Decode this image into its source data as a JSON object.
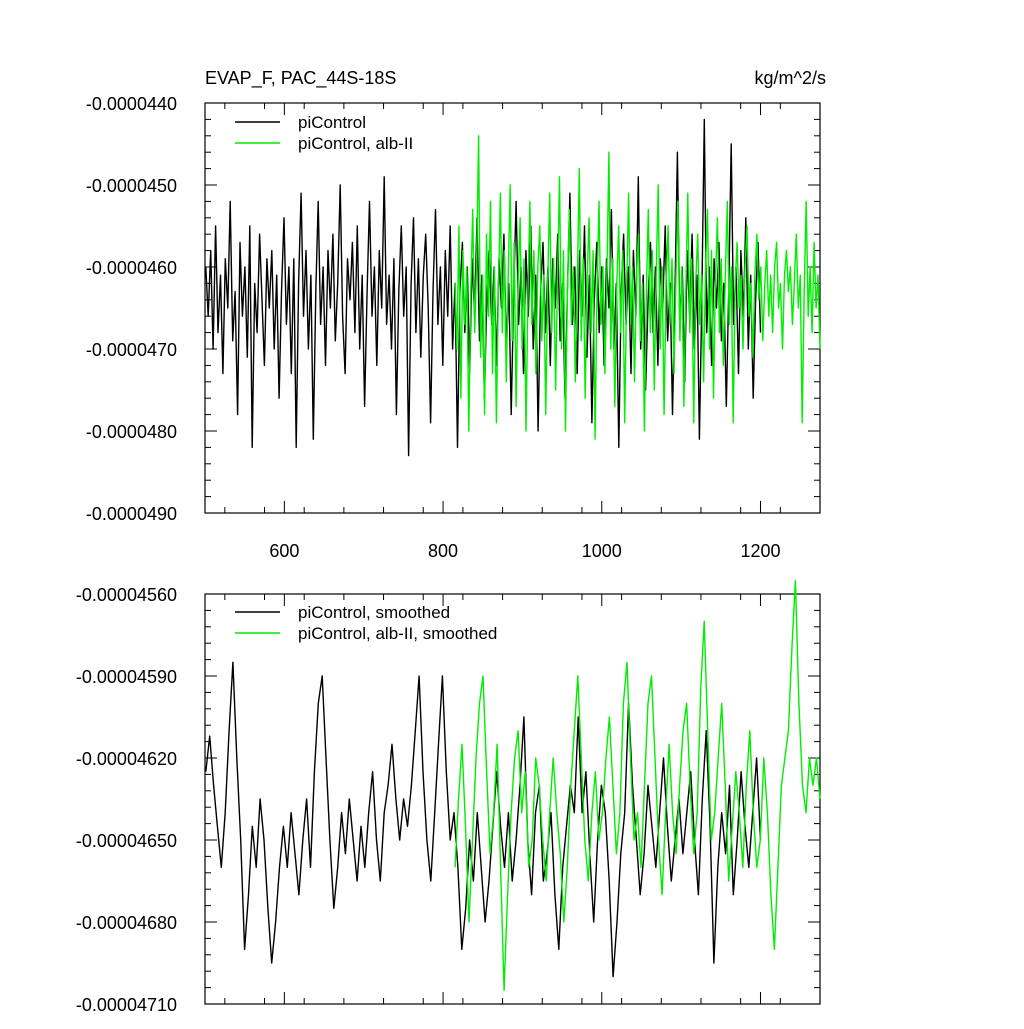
{
  "chart_data": [
    {
      "type": "line",
      "title_left": "EVAP_F, PAC_44S-18S",
      "title_right": "kg/m^2/s",
      "xlabel": "",
      "ylabel": "",
      "xlim": [
        500,
        1275
      ],
      "ylim": [
        -4.9e-05,
        -4.4e-05
      ],
      "x_ticks": [
        600,
        800,
        1000,
        1200
      ],
      "x_tick_labels": [
        "600",
        "800",
        "1000",
        "1200"
      ],
      "y_ticks": [
        -4.4e-05,
        -4.5e-05,
        -4.6e-05,
        -4.7e-05,
        -4.8e-05,
        -4.9e-05
      ],
      "y_tick_labels": [
        "-0.0000440",
        "-0.0000450",
        "-0.0000460",
        "-0.0000470",
        "-0.0000480",
        "-0.0000490"
      ],
      "legend_position": "top-left",
      "series": [
        {
          "name": "piControl",
          "color": "#000000",
          "x_start": 501,
          "x_end": 1200,
          "values": [
            -4.6e-05,
            -4.66e-05,
            -4.58e-05,
            -4.7e-05,
            -4.55e-05,
            -4.68e-05,
            -4.61e-05,
            -4.73e-05,
            -4.59e-05,
            -4.65e-05,
            -4.52e-05,
            -4.69e-05,
            -4.63e-05,
            -4.78e-05,
            -4.57e-05,
            -4.66e-05,
            -4.6e-05,
            -4.71e-05,
            -4.55e-05,
            -4.82e-05,
            -4.62e-05,
            -4.68e-05,
            -4.56e-05,
            -4.64e-05,
            -4.72e-05,
            -4.59e-05,
            -4.65e-05,
            -4.58e-05,
            -4.7e-05,
            -4.61e-05,
            -4.76e-05,
            -4.63e-05,
            -4.54e-05,
            -4.67e-05,
            -4.6e-05,
            -4.73e-05,
            -4.59e-05,
            -4.82e-05,
            -4.62e-05,
            -4.51e-05,
            -4.66e-05,
            -4.58e-05,
            -4.7e-05,
            -4.61e-05,
            -4.81e-05,
            -4.63e-05,
            -4.52e-05,
            -4.67e-05,
            -4.6e-05,
            -4.72e-05,
            -4.58e-05,
            -4.65e-05,
            -4.56e-05,
            -4.69e-05,
            -4.62e-05,
            -4.5e-05,
            -4.66e-05,
            -4.73e-05,
            -4.59e-05,
            -4.64e-05,
            -4.57e-05,
            -4.68e-05,
            -4.55e-05,
            -4.7e-05,
            -4.61e-05,
            -4.77e-05,
            -4.63e-05,
            -4.52e-05,
            -4.66e-05,
            -4.6e-05,
            -4.72e-05,
            -4.58e-05,
            -4.65e-05,
            -4.49e-05,
            -4.67e-05,
            -4.61e-05,
            -4.7e-05,
            -4.59e-05,
            -4.78e-05,
            -4.63e-05,
            -4.55e-05,
            -4.66e-05,
            -4.6e-05,
            -4.83e-05,
            -4.62e-05,
            -4.54e-05,
            -4.68e-05,
            -4.59e-05,
            -4.71e-05,
            -4.61e-05,
            -4.56e-05,
            -4.65e-05,
            -4.79e-05,
            -4.63e-05,
            -4.53e-05,
            -4.67e-05,
            -4.6e-05,
            -4.72e-05,
            -4.58e-05,
            -4.66e-05,
            -4.55e-05,
            -4.7e-05,
            -4.62e-05,
            -4.82e-05,
            -4.63e-05,
            -4.57e-05,
            -4.68e-05,
            -4.6e-05,
            -4.73e-05,
            -4.59e-05,
            -4.66e-05,
            -4.54e-05,
            -4.69e-05,
            -4.61e-05,
            -4.76e-05,
            -4.64e-05,
            -4.58e-05,
            -4.67e-05,
            -4.6e-05,
            -4.72e-05,
            -4.59e-05,
            -4.65e-05,
            -4.56e-05,
            -4.7e-05,
            -4.62e-05,
            -4.78e-05,
            -4.63e-05,
            -4.52e-05,
            -4.67e-05,
            -4.6e-05,
            -4.73e-05,
            -4.58e-05,
            -4.66e-05,
            -4.55e-05,
            -4.7e-05,
            -4.61e-05,
            -4.8e-05,
            -4.63e-05,
            -4.57e-05,
            -4.68e-05,
            -4.6e-05,
            -4.72e-05,
            -4.59e-05,
            -4.65e-05,
            -4.56e-05,
            -4.69e-05,
            -4.62e-05,
            -4.76e-05,
            -4.63e-05,
            -4.51e-05,
            -4.67e-05,
            -4.6e-05,
            -4.73e-05,
            -4.58e-05,
            -4.66e-05,
            -4.55e-05,
            -4.71e-05,
            -4.61e-05,
            -4.79e-05,
            -4.64e-05,
            -4.57e-05,
            -4.68e-05,
            -4.6e-05,
            -4.72e-05,
            -4.59e-05,
            -4.65e-05,
            -4.53e-05,
            -4.7e-05,
            -4.62e-05,
            -4.82e-05,
            -4.63e-05,
            -4.56e-05,
            -4.67e-05,
            -4.6e-05,
            -4.73e-05,
            -4.58e-05,
            -4.66e-05,
            -4.49e-05,
            -4.7e-05,
            -4.61e-05,
            -4.75e-05,
            -4.64e-05,
            -4.57e-05,
            -4.68e-05,
            -4.6e-05,
            -4.72e-05,
            -4.59e-05,
            -4.65e-05,
            -4.55e-05,
            -4.69e-05,
            -4.62e-05,
            -4.78e-05,
            -4.63e-05,
            -4.46e-05,
            -4.67e-05,
            -4.6e-05,
            -4.74e-05,
            -4.58e-05,
            -4.66e-05,
            -4.56e-05,
            -4.7e-05,
            -4.61e-05,
            -4.81e-05,
            -4.64e-05,
            -4.42e-05,
            -4.68e-05,
            -4.6e-05,
            -4.72e-05,
            -4.59e-05,
            -4.65e-05,
            -4.57e-05,
            -4.69e-05,
            -4.62e-05,
            -4.77e-05,
            -4.63e-05,
            -4.45e-05,
            -4.67e-05,
            -4.6e-05,
            -4.73e-05,
            -4.58e-05,
            -4.66e-05,
            -4.54e-05,
            -4.7e-05,
            -4.61e-05,
            -4.76e-05,
            -4.64e-05,
            -4.57e-05,
            -4.68e-05
          ]
        },
        {
          "name": "piControl, alb-II",
          "color": "#00ee00",
          "x_start": 815,
          "x_end": 1275,
          "values": [
            -4.62e-05,
            -4.7e-05,
            -4.55e-05,
            -4.76e-05,
            -4.58e-05,
            -4.67e-05,
            -4.6e-05,
            -4.8e-05,
            -4.63e-05,
            -4.53e-05,
            -4.68e-05,
            -4.59e-05,
            -4.44e-05,
            -4.71e-05,
            -4.61e-05,
            -4.78e-05,
            -4.56e-05,
            -4.66e-05,
            -4.52e-05,
            -4.73e-05,
            -4.6e-05,
            -4.79e-05,
            -4.63e-05,
            -4.51e-05,
            -4.68e-05,
            -4.58e-05,
            -4.74e-05,
            -4.61e-05,
            -4.5e-05,
            -4.69e-05,
            -4.57e-05,
            -4.77e-05,
            -4.62e-05,
            -4.54e-05,
            -4.7e-05,
            -4.59e-05,
            -4.8e-05,
            -4.63e-05,
            -4.52e-05,
            -4.67e-05,
            -4.58e-05,
            -4.73e-05,
            -4.6e-05,
            -4.55e-05,
            -4.69e-05,
            -4.61e-05,
            -4.78e-05,
            -4.62e-05,
            -4.51e-05,
            -4.68e-05,
            -4.59e-05,
            -4.75e-05,
            -4.61e-05,
            -4.49e-05,
            -4.7e-05,
            -4.58e-05,
            -4.8e-05,
            -4.63e-05,
            -4.53e-05,
            -4.67e-05,
            -4.6e-05,
            -4.74e-05,
            -4.62e-05,
            -4.48e-05,
            -4.69e-05,
            -4.59e-05,
            -4.76e-05,
            -4.61e-05,
            -4.54e-05,
            -4.68e-05,
            -4.58e-05,
            -4.81e-05,
            -4.63e-05,
            -4.52e-05,
            -4.67e-05,
            -4.6e-05,
            -4.73e-05,
            -4.61e-05,
            -4.46e-05,
            -4.7e-05,
            -4.59e-05,
            -4.77e-05,
            -4.62e-05,
            -4.55e-05,
            -4.68e-05,
            -4.58e-05,
            -4.79e-05,
            -4.63e-05,
            -4.51e-05,
            -4.67e-05,
            -4.6e-05,
            -4.74e-05,
            -4.61e-05,
            -4.56e-05,
            -4.69e-05,
            -4.62e-05,
            -4.8e-05,
            -4.63e-05,
            -4.53e-05,
            -4.68e-05,
            -4.58e-05,
            -4.75e-05,
            -4.61e-05,
            -4.5e-05,
            -4.7e-05,
            -4.6e-05,
            -4.78e-05,
            -4.62e-05,
            -4.55e-05,
            -4.67e-05,
            -4.59e-05,
            -4.73e-05,
            -4.61e-05,
            -4.52e-05,
            -4.69e-05,
            -4.6e-05,
            -4.77e-05,
            -4.63e-05,
            -4.51e-05,
            -4.68e-05,
            -4.59e-05,
            -4.79e-05,
            -4.62e-05,
            -4.56e-05,
            -4.67e-05,
            -4.61e-05,
            -4.74e-05,
            -4.6e-05,
            -4.53e-05,
            -4.7e-05,
            -4.58e-05,
            -4.76e-05,
            -4.62e-05,
            -4.54e-05,
            -4.68e-05,
            -4.59e-05,
            -4.72e-05,
            -4.61e-05,
            -4.52e-05,
            -4.67e-05,
            -4.6e-05,
            -4.79e-05,
            -4.62e-05,
            -4.57e-05,
            -4.65e-05,
            -4.61e-05,
            -4.7e-05,
            -4.6e-05,
            -4.55e-05,
            -4.66e-05,
            -4.62e-05,
            -4.71e-05,
            -4.61e-05,
            -4.56e-05,
            -4.64e-05,
            -4.6e-05,
            -4.69e-05,
            -4.62e-05,
            -4.58e-05,
            -4.66e-05,
            -4.61e-05,
            -4.68e-05,
            -4.6e-05,
            -4.57e-05,
            -4.65e-05,
            -4.62e-05,
            -4.7e-05,
            -4.61e-05,
            -4.58e-05,
            -4.63e-05,
            -4.6e-05,
            -4.67e-05,
            -4.62e-05,
            -4.56e-05,
            -4.65e-05,
            -4.61e-05,
            -4.79e-05,
            -4.63e-05,
            -4.52e-05,
            -4.66e-05,
            -4.6e-05,
            -4.68e-05,
            -4.57e-05,
            -4.65e-05,
            -4.61e-05,
            -4.7e-05
          ]
        }
      ]
    },
    {
      "type": "line",
      "xlabel": "",
      "ylabel": "",
      "xlim": [
        500,
        1275
      ],
      "ylim": [
        -4.71e-05,
        -4.56e-05
      ],
      "x_ticks": [
        600,
        800,
        1000,
        1200
      ],
      "y_ticks": [
        -4.56e-05,
        -4.59e-05,
        -4.62e-05,
        -4.65e-05,
        -4.68e-05,
        -4.71e-05
      ],
      "y_tick_labels": [
        "-0.00004560",
        "-0.00004590",
        "-0.00004620",
        "-0.00004650",
        "-0.00004680",
        "-0.00004710"
      ],
      "legend_position": "top-left",
      "series": [
        {
          "name": "piControl, smoothed",
          "color": "#000000",
          "x_start": 501,
          "x_end": 1200,
          "values": [
            -4.625e-05,
            -4.612e-05,
            -4.63e-05,
            -4.645e-05,
            -4.66e-05,
            -4.64e-05,
            -4.61e-05,
            -4.585e-05,
            -4.62e-05,
            -4.65e-05,
            -4.69e-05,
            -4.67e-05,
            -4.645e-05,
            -4.66e-05,
            -4.635e-05,
            -4.65e-05,
            -4.675e-05,
            -4.695e-05,
            -4.68e-05,
            -4.66e-05,
            -4.645e-05,
            -4.66e-05,
            -4.64e-05,
            -4.655e-05,
            -4.67e-05,
            -4.65e-05,
            -4.635e-05,
            -4.66e-05,
            -4.625e-05,
            -4.6e-05,
            -4.59e-05,
            -4.62e-05,
            -4.65e-05,
            -4.675e-05,
            -4.66e-05,
            -4.64e-05,
            -4.655e-05,
            -4.635e-05,
            -4.65e-05,
            -4.665e-05,
            -4.645e-05,
            -4.66e-05,
            -4.64e-05,
            -4.625e-05,
            -4.65e-05,
            -4.665e-05,
            -4.64e-05,
            -4.63e-05,
            -4.615e-05,
            -4.635e-05,
            -4.65e-05,
            -4.635e-05,
            -4.645e-05,
            -4.63e-05,
            -4.61e-05,
            -4.59e-05,
            -4.625e-05,
            -4.65e-05,
            -4.665e-05,
            -4.64e-05,
            -4.615e-05,
            -4.59e-05,
            -4.625e-05,
            -4.65e-05,
            -4.64e-05,
            -4.66e-05,
            -4.69e-05,
            -4.675e-05,
            -4.65e-05,
            -4.665e-05,
            -4.64e-05,
            -4.66e-05,
            -4.68e-05,
            -4.665e-05,
            -4.645e-05,
            -4.625e-05,
            -4.645e-05,
            -4.66e-05,
            -4.64e-05,
            -4.665e-05,
            -4.65e-05,
            -4.63e-05,
            -4.605e-05,
            -4.65e-05,
            -4.67e-05,
            -4.64e-05,
            -4.63e-05,
            -4.665e-05,
            -4.655e-05,
            -4.64e-05,
            -4.67e-05,
            -4.69e-05,
            -4.66e-05,
            -4.645e-05,
            -4.63e-05,
            -4.64e-05,
            -4.605e-05,
            -4.64e-05,
            -4.625e-05,
            -4.655e-05,
            -4.68e-05,
            -4.65e-05,
            -4.63e-05,
            -4.64e-05,
            -4.665e-05,
            -4.7e-05,
            -4.68e-05,
            -4.655e-05,
            -4.64e-05,
            -4.6e-05,
            -4.63e-05,
            -4.65e-05,
            -4.67e-05,
            -4.655e-05,
            -4.63e-05,
            -4.645e-05,
            -4.66e-05,
            -4.64e-05,
            -4.62e-05,
            -4.645e-05,
            -4.665e-05,
            -4.65e-05,
            -4.635e-05,
            -4.655e-05,
            -4.64e-05,
            -4.625e-05,
            -4.65e-05,
            -4.67e-05,
            -4.635e-05,
            -4.61e-05,
            -4.645e-05,
            -4.695e-05,
            -4.66e-05,
            -4.64e-05,
            -4.655e-05,
            -4.63e-05,
            -4.67e-05,
            -4.65e-05,
            -4.625e-05,
            -4.645e-05,
            -4.66e-05,
            -4.64e-05,
            -4.62e-05,
            -4.65e-05
          ]
        },
        {
          "name": "piControl, alb-II, smoothed",
          "color": "#00ee00",
          "x_start": 815,
          "x_end": 1275,
          "values": [
            -4.66e-05,
            -4.635e-05,
            -4.615e-05,
            -4.645e-05,
            -4.68e-05,
            -4.65e-05,
            -4.62e-05,
            -4.6e-05,
            -4.59e-05,
            -4.625e-05,
            -4.655e-05,
            -4.64e-05,
            -4.615e-05,
            -4.66e-05,
            -4.705e-05,
            -4.67e-05,
            -4.64e-05,
            -4.62e-05,
            -4.61e-05,
            -4.64e-05,
            -4.625e-05,
            -4.66e-05,
            -4.65e-05,
            -4.62e-05,
            -4.63e-05,
            -4.65e-05,
            -4.665e-05,
            -4.64e-05,
            -4.62e-05,
            -4.64e-05,
            -4.655e-05,
            -4.68e-05,
            -4.66e-05,
            -4.63e-05,
            -4.61e-05,
            -4.59e-05,
            -4.62e-05,
            -4.65e-05,
            -4.665e-05,
            -4.64e-05,
            -4.625e-05,
            -4.65e-05,
            -4.64e-05,
            -4.62e-05,
            -4.605e-05,
            -4.63e-05,
            -4.655e-05,
            -4.64e-05,
            -4.6e-05,
            -4.585e-05,
            -4.62e-05,
            -4.65e-05,
            -4.64e-05,
            -4.66e-05,
            -4.63e-05,
            -4.6e-05,
            -4.59e-05,
            -4.62e-05,
            -4.65e-05,
            -4.67e-05,
            -4.64e-05,
            -4.615e-05,
            -4.64e-05,
            -4.655e-05,
            -4.63e-05,
            -4.61e-05,
            -4.6e-05,
            -4.63e-05,
            -4.655e-05,
            -4.64e-05,
            -4.595e-05,
            -4.57e-05,
            -4.61e-05,
            -4.65e-05,
            -4.64e-05,
            -4.62e-05,
            -4.6e-05,
            -4.63e-05,
            -4.665e-05,
            -4.645e-05,
            -4.625e-05,
            -4.64e-05,
            -4.66e-05,
            -4.63e-05,
            -4.61e-05,
            -4.64e-05,
            -4.66e-05,
            -4.65e-05,
            -4.62e-05,
            -4.64e-05,
            -4.67e-05,
            -4.69e-05,
            -4.66e-05,
            -4.63e-05,
            -4.62e-05,
            -4.61e-05,
            -4.58e-05,
            -4.555e-05,
            -4.6e-05,
            -4.63e-05,
            -4.64e-05,
            -4.62e-05,
            -4.63e-05,
            -4.62e-05,
            -4.635e-05
          ]
        }
      ]
    }
  ]
}
